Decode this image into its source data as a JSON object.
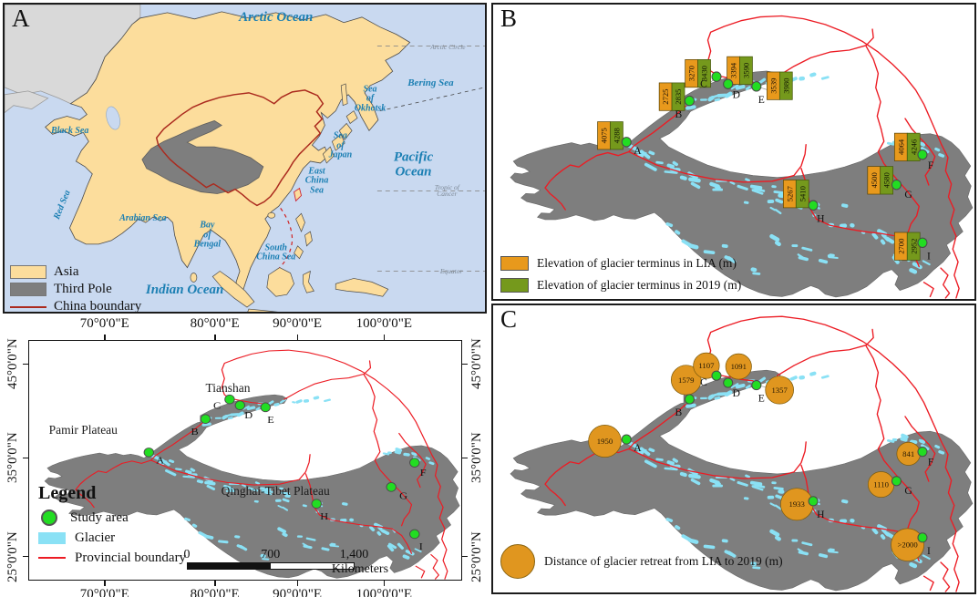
{
  "panel_a": {
    "label": "A",
    "ocean_labels": [
      {
        "name": "arctic-ocean",
        "text": "Arctic Ocean",
        "cls": "big"
      },
      {
        "name": "arctic-circle",
        "text": "Arctic Circle",
        "cls": "line-label"
      },
      {
        "name": "bering-sea",
        "text": "Bering Sea",
        "cls": "mid"
      },
      {
        "name": "sea-of-okhotsk",
        "text": "Sea\nof\nOkhotsk",
        "cls": "small"
      },
      {
        "name": "black-sea",
        "text": "Black Sea",
        "cls": "small"
      },
      {
        "name": "sea-of-japan",
        "text": "Sea\nof\nJapan",
        "cls": "small"
      },
      {
        "name": "pacific-ocean",
        "text": "Pacific Ocean",
        "cls": "big"
      },
      {
        "name": "east-china-sea",
        "text": "East\nChina\nSea",
        "cls": "small"
      },
      {
        "name": "tropic-of-cancer",
        "text": "Tropic of Cancer",
        "cls": "line-label"
      },
      {
        "name": "red-sea",
        "text": "Red Sea",
        "cls": "small rot"
      },
      {
        "name": "arabian-sea",
        "text": "Arabian Sea",
        "cls": "small"
      },
      {
        "name": "bay-of-bengal",
        "text": "Bay\nof\nBengal",
        "cls": "small"
      },
      {
        "name": "south-china-sea",
        "text": "South\nChina Sea",
        "cls": "small"
      },
      {
        "name": "equator",
        "text": "Equator",
        "cls": "line-label"
      },
      {
        "name": "indian-ocean",
        "text": "Indian Ocean",
        "cls": "big"
      }
    ],
    "legend": [
      {
        "name": "asia",
        "label": "Asia"
      },
      {
        "name": "third-pole",
        "label": "Third Pole"
      },
      {
        "name": "china-boundary",
        "label": "China boundary"
      }
    ]
  },
  "regional_map": {
    "lon_ticks": [
      "70°0'0\"E",
      "80°0'0\"E",
      "90°0'0\"E",
      "100°0'0\"E"
    ],
    "lat_ticks": [
      "45°0'0\"N",
      "35°0'0\"N",
      "25°0'0\"N"
    ],
    "place_labels": [
      "Tianshan",
      "Pamir Plateau",
      "Qinghai-Tibet Plateau"
    ],
    "legend_title": "Legend",
    "legend": [
      {
        "name": "study-area",
        "label": "Study area"
      },
      {
        "name": "glacier",
        "label": "Glacier"
      },
      {
        "name": "provincial-boundary",
        "label": "Provincial boundary"
      }
    ],
    "scale_bar": {
      "labels": [
        "0",
        "700",
        "1,400"
      ],
      "unit": "Kilometers"
    }
  },
  "panel_b": {
    "label": "B",
    "legend": [
      {
        "name": "lia-elevation",
        "label": "Elevation of glacier terminus in LIA (m)"
      },
      {
        "name": "elevation-2019",
        "label": "Elevation of glacier terminus in 2019 (m)"
      }
    ]
  },
  "panel_c": {
    "label": "C",
    "legend_label": "Distance of glacier retreat from LIA to 2019 (m)"
  },
  "sites": [
    {
      "id": "A",
      "lia_elevation": "4075",
      "elevation_2019": "4288",
      "retreat": "1950",
      "retreat_value": 1950
    },
    {
      "id": "B",
      "lia_elevation": "2725",
      "elevation_2019": "2835",
      "retreat": "1579",
      "retreat_value": 1579
    },
    {
      "id": "C",
      "lia_elevation": "3270",
      "elevation_2019": "3430",
      "retreat": "1107",
      "retreat_value": 1107
    },
    {
      "id": "D",
      "lia_elevation": "3394",
      "elevation_2019": "3590",
      "retreat": "1091",
      "retreat_value": 1091
    },
    {
      "id": "E",
      "lia_elevation": "3539",
      "elevation_2019": "3980",
      "retreat": "1357",
      "retreat_value": 1357
    },
    {
      "id": "F",
      "lia_elevation": "4064",
      "elevation_2019": "4246",
      "retreat": "841",
      "retreat_value": 841
    },
    {
      "id": "G",
      "lia_elevation": "4500",
      "elevation_2019": "4580",
      "retreat": "1110",
      "retreat_value": 1110
    },
    {
      "id": "H",
      "lia_elevation": "5267",
      "elevation_2019": "5410",
      "retreat": "1933",
      "retreat_value": 1933
    },
    {
      "id": "I",
      "lia_elevation": "2700",
      "elevation_2019": "2952",
      "retreat": ">2000",
      "retreat_value": 2000
    }
  ],
  "colors": {
    "ocean": "#c9d9f0",
    "asia": "#fcdd9c",
    "other_land": "#d9d9d9",
    "third_pole": "#7e7e7e",
    "china_boundary": "#ab2a1e",
    "provincial_boundary": "#ec1c24",
    "glacier": "#8ae1f5",
    "study_area": "#22dd22",
    "lia_box": "#e8991c",
    "box_2019": "#75991c",
    "retreat_circle": "#e0961f",
    "sea_label": "#1b7fb3"
  }
}
